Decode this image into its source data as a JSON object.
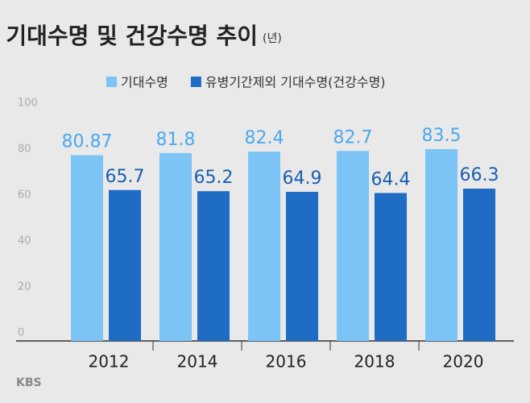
{
  "chart_data": {
    "type": "bar",
    "title": "기대수명 및 건강수명 추이",
    "unit": "(년)",
    "categories": [
      "2012",
      "2014",
      "2016",
      "2018",
      "2020"
    ],
    "series": [
      {
        "name": "기대수명",
        "color": "#7cc4f6",
        "values": [
          80.87,
          81.8,
          82.4,
          82.7,
          83.5
        ]
      },
      {
        "name": "유병기간제외 기대수명(건강수명)",
        "color": "#1f6cc4",
        "values": [
          65.7,
          65.2,
          64.9,
          64.4,
          66.3
        ]
      }
    ],
    "ylim": [
      0,
      100
    ],
    "yticks": [
      0,
      20,
      40,
      60,
      80,
      100
    ],
    "grid": false,
    "source": "KBS"
  }
}
